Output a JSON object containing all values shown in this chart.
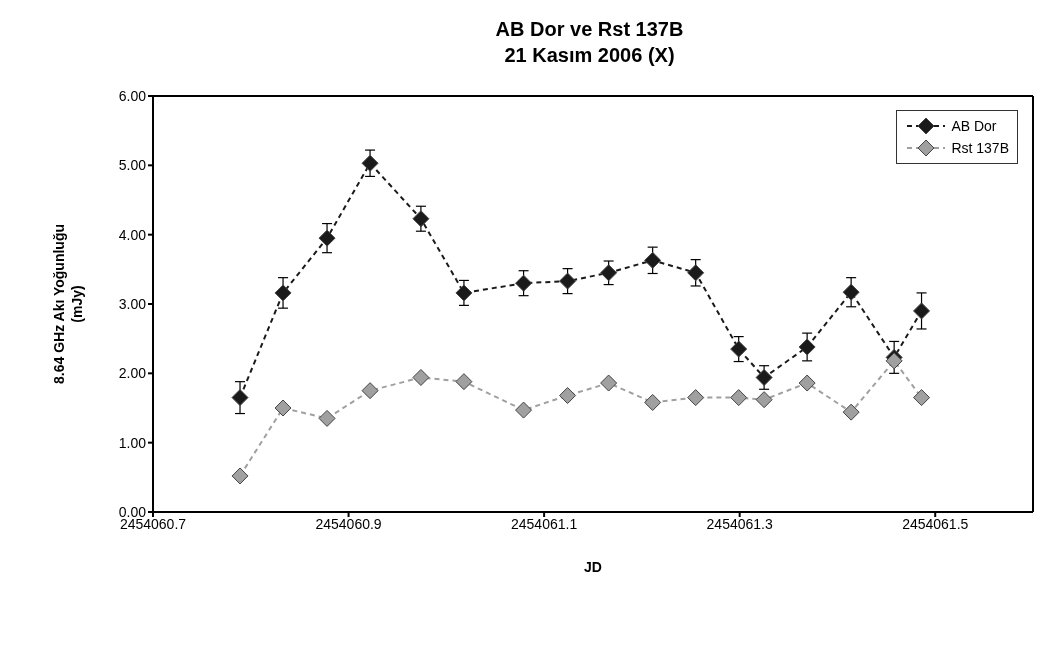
{
  "chart_data": {
    "type": "line",
    "title": "AB Dor ve Rst 137B\n21 Kasım 2006 (X)",
    "xlabel": "JD",
    "ylabel": "8.64 GHz Akı Yoğunluğu\n(mJy)",
    "x": [
      2454060.789,
      2454060.833,
      2454060.878,
      2454060.922,
      2454060.974,
      2454061.018,
      2454061.079,
      2454061.124,
      2454061.166,
      2454061.211,
      2454061.255,
      2454061.299,
      2454061.325,
      2454061.369,
      2454061.414,
      2454061.458,
      2454061.486
    ],
    "series": [
      {
        "name": "AB Dor",
        "color": "#1a1a1a",
        "values": [
          1.65,
          3.16,
          3.95,
          5.03,
          4.23,
          3.16,
          3.3,
          3.33,
          3.45,
          3.63,
          3.45,
          2.35,
          1.94,
          2.38,
          3.17,
          2.23,
          2.9
        ],
        "errors": [
          0.23,
          0.22,
          0.21,
          0.19,
          0.18,
          0.18,
          0.18,
          0.18,
          0.17,
          0.19,
          0.19,
          0.18,
          0.17,
          0.2,
          0.21,
          0.23,
          0.26
        ]
      },
      {
        "name": "Rst 137B",
        "color": "#a0a0a0",
        "values": [
          0.52,
          1.5,
          1.35,
          1.75,
          1.94,
          1.88,
          1.47,
          1.68,
          1.86,
          1.58,
          1.65,
          1.65,
          1.62,
          1.86,
          1.44,
          2.18,
          1.65
        ]
      }
    ],
    "xlim": [
      2454060.7,
      2454061.6
    ],
    "xticks": [
      2454060.7,
      2454060.9,
      2454061.1,
      2454061.3,
      2454061.5
    ],
    "ylim": [
      0,
      6
    ],
    "yticks": [
      {
        "value": 0,
        "label": "0.00"
      },
      {
        "value": 1,
        "label": "1.00"
      },
      {
        "value": 2,
        "label": "2.00"
      },
      {
        "value": 3,
        "label": "3.00"
      },
      {
        "value": 4,
        "label": "4.00"
      },
      {
        "value": 5,
        "label": "5.00"
      },
      {
        "value": 6,
        "label": "6.00"
      }
    ],
    "legend": "top right",
    "marker": "diamond",
    "line_style": "dashed"
  }
}
